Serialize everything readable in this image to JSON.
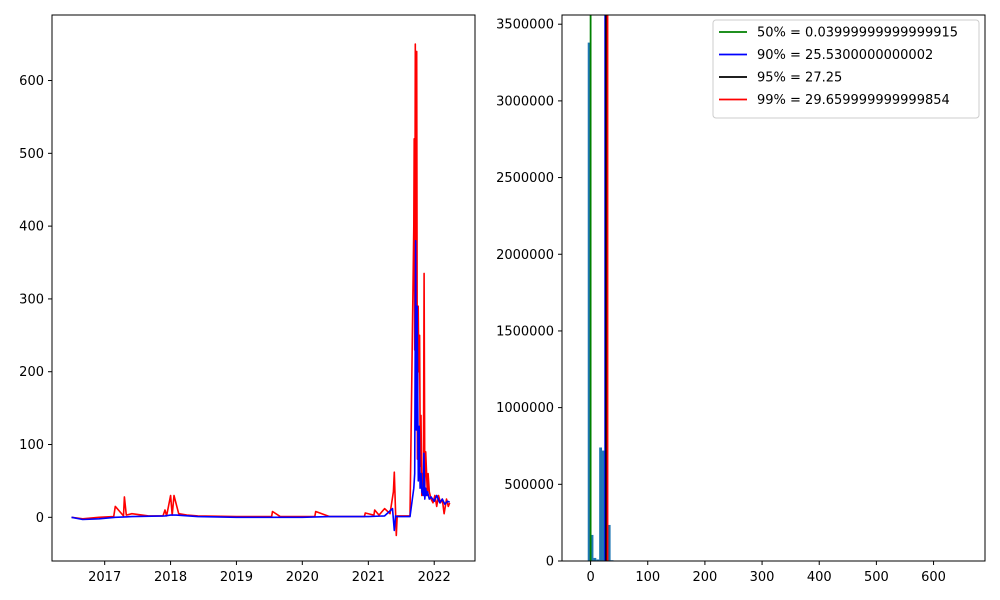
{
  "chart_data": [
    {
      "type": "line",
      "title": "",
      "xlabel": "",
      "ylabel": "",
      "xlim": [
        "2016-03-15",
        "2022-08-15"
      ],
      "ylim": [
        -60,
        690
      ],
      "x_ticks": [
        "2017",
        "2018",
        "2019",
        "2020",
        "2021",
        "2022"
      ],
      "y_ticks": [
        0,
        100,
        200,
        300,
        400,
        500,
        600
      ],
      "grid": false,
      "series": [
        {
          "color": "#ff0000",
          "x": [
            "2016-07-01",
            "2016-09-01",
            "2016-12-01",
            "2017-02-20",
            "2017-03-01",
            "2017-04-15",
            "2017-04-20",
            "2017-05-01",
            "2017-06-01",
            "2017-09-01",
            "2017-11-20",
            "2017-12-01",
            "2017-12-10",
            "2018-01-01",
            "2018-01-10",
            "2018-01-20",
            "2018-02-15",
            "2018-04-01",
            "2018-06-01",
            "2019-01-01",
            "2019-07-15",
            "2019-07-20",
            "2019-09-01",
            "2020-03-10",
            "2020-03-15",
            "2020-06-01",
            "2020-12-10",
            "2020-12-15",
            "2021-02-01",
            "2021-02-05",
            "2021-03-01",
            "2021-04-01",
            "2021-05-01",
            "2021-05-20",
            "2021-05-25",
            "2021-06-05",
            "2021-06-10",
            "2021-07-01",
            "2021-08-20",
            "2021-09-10",
            "2021-09-12",
            "2021-09-15",
            "2021-09-18",
            "2021-09-22",
            "2021-09-26",
            "2021-09-30",
            "2021-10-04",
            "2021-10-08",
            "2021-10-12",
            "2021-10-16",
            "2021-10-20",
            "2021-10-24",
            "2021-10-28",
            "2021-11-02",
            "2021-11-06",
            "2021-11-10",
            "2021-11-15",
            "2021-11-20",
            "2021-11-24",
            "2021-11-28",
            "2021-12-05",
            "2021-12-15",
            "2021-12-25",
            "2022-01-05",
            "2022-01-15",
            "2022-01-25",
            "2022-02-05",
            "2022-02-15",
            "2022-02-25",
            "2022-03-10",
            "2022-03-20",
            "2022-03-28"
          ],
          "y": [
            0,
            -2,
            0,
            1,
            15,
            2,
            28,
            3,
            5,
            2,
            2,
            10,
            2,
            30,
            3,
            30,
            5,
            3,
            2,
            1,
            1,
            8,
            1,
            1,
            8,
            1,
            1,
            6,
            3,
            10,
            3,
            12,
            5,
            35,
            62,
            -25,
            2,
            2,
            2,
            400,
            520,
            230,
            650,
            180,
            640,
            80,
            290,
            200,
            250,
            70,
            140,
            30,
            60,
            45,
            335,
            40,
            90,
            60,
            30,
            60,
            35,
            25,
            20,
            30,
            15,
            30,
            20,
            25,
            5,
            25,
            15,
            20
          ]
        },
        {
          "color": "#0000ff",
          "x": [
            "2016-07-01",
            "2016-09-01",
            "2016-12-01",
            "2017-03-01",
            "2017-06-01",
            "2017-12-01",
            "2018-01-01",
            "2018-02-01",
            "2018-06-01",
            "2019-01-01",
            "2020-01-01",
            "2020-06-01",
            "2021-01-01",
            "2021-04-01",
            "2021-05-15",
            "2021-05-25",
            "2021-06-01",
            "2021-06-10",
            "2021-08-20",
            "2021-09-10",
            "2021-09-15",
            "2021-09-20",
            "2021-09-24",
            "2021-09-28",
            "2021-10-05",
            "2021-10-10",
            "2021-10-15",
            "2021-10-20",
            "2021-10-25",
            "2021-11-01",
            "2021-11-05",
            "2021-11-10",
            "2021-11-15",
            "2021-11-20",
            "2021-11-25",
            "2021-12-05",
            "2021-12-15",
            "2022-01-01",
            "2022-01-15",
            "2022-02-01",
            "2022-02-15",
            "2022-03-01",
            "2022-03-15",
            "2022-03-28"
          ],
          "y": [
            0,
            -3,
            -2,
            0,
            1,
            2,
            3,
            3,
            1,
            0,
            0,
            1,
            1,
            2,
            12,
            -18,
            2,
            1,
            1,
            40,
            60,
            380,
            120,
            290,
            50,
            125,
            40,
            60,
            35,
            30,
            88,
            25,
            40,
            30,
            35,
            25,
            28,
            22,
            30,
            20,
            25,
            18,
            22,
            21
          ]
        }
      ]
    },
    {
      "type": "histogram",
      "title": "",
      "xlabel": "",
      "ylabel": "",
      "xlim": [
        -50,
        690
      ],
      "ylim": [
        0,
        3560000
      ],
      "x_ticks": [
        0,
        100,
        200,
        300,
        400,
        500,
        600
      ],
      "y_ticks": [
        0,
        500000,
        1000000,
        1500000,
        2000000,
        2500000,
        3000000,
        3500000
      ],
      "grid": false,
      "bar_color": "#1f77b4",
      "bins": [
        {
          "x0": -5,
          "x1": 0,
          "count": 3380000
        },
        {
          "x0": 0,
          "x1": 5,
          "count": 170000
        },
        {
          "x0": 5,
          "x1": 10,
          "count": 20000
        },
        {
          "x0": 10,
          "x1": 15,
          "count": 10000
        },
        {
          "x0": 15,
          "x1": 20,
          "count": 740000
        },
        {
          "x0": 20,
          "x1": 25,
          "count": 720000
        },
        {
          "x0": 25,
          "x1": 30,
          "count": 730000
        },
        {
          "x0": 30,
          "x1": 35,
          "count": 235000
        },
        {
          "x0": 35,
          "x1": 40,
          "count": 5000
        }
      ],
      "vlines": [
        {
          "x": 0.03999999999999915,
          "color": "#008000",
          "label": "50% = 0.03999999999999915"
        },
        {
          "x": 25.5300000000002,
          "color": "#0000ff",
          "label": "90% = 25.5300000000002"
        },
        {
          "x": 27.25,
          "color": "#000000",
          "label": "95% = 27.25"
        },
        {
          "x": 29.659999999999854,
          "color": "#ff0000",
          "label": "99% = 29.659999999999854"
        }
      ],
      "legend": "top-right"
    }
  ]
}
